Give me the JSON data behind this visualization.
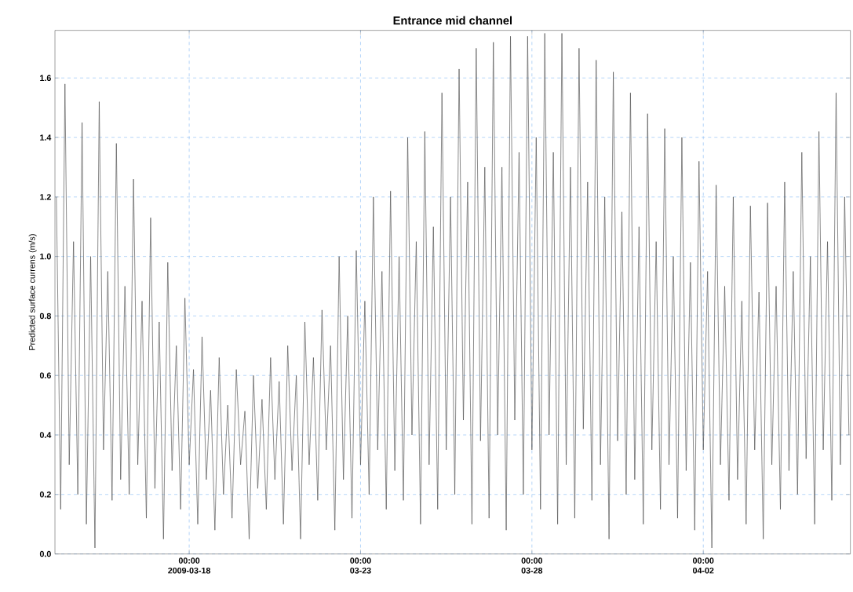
{
  "chart_data": {
    "type": "line",
    "title": "Entrance mid channel",
    "ylabel": "Predicted surface currens (m/s)",
    "color": "#505050",
    "grid": true,
    "marker": "none",
    "line_style": "solid",
    "xlim": [
      "2009-03-14T02:00",
      "2009-04-06T07:00"
    ],
    "ylim": [
      0,
      1.76
    ],
    "xticks": [
      {
        "value": "2009-03-18T00:00",
        "label": "00:00 2009-03-18"
      },
      {
        "value": "2009-03-23T00:00",
        "label": "00:00 03-23"
      },
      {
        "value": "2009-03-28T00:00",
        "label": "00:00 03-28"
      },
      {
        "value": "2009-04-02T00:00",
        "label": "00:00 04-02"
      }
    ],
    "yticks": [
      {
        "value": 0,
        "label": "0.0"
      },
      {
        "value": 0.2,
        "label": "0.2"
      },
      {
        "value": 0.4,
        "label": "0.4"
      },
      {
        "value": 0.6,
        "label": "0.6"
      },
      {
        "value": 0.8,
        "label": "0.8"
      },
      {
        "value": 1.0,
        "label": "1.0"
      },
      {
        "value": 1.2,
        "label": "1.2"
      },
      {
        "value": 1.4,
        "label": "1.4"
      },
      {
        "value": 1.6,
        "label": "1.6"
      }
    ],
    "x": [
      "2009-03-14T03:00",
      "2009-03-14T06:00",
      "2009-03-14T09:00",
      "2009-03-14T12:00",
      "2009-03-14T15:00",
      "2009-03-14T18:00",
      "2009-03-14T21:00",
      "2009-03-15T00:00",
      "2009-03-15T03:00",
      "2009-03-15T06:00",
      "2009-03-15T09:00",
      "2009-03-15T12:00",
      "2009-03-15T15:00",
      "2009-03-15T18:00",
      "2009-03-15T21:00",
      "2009-03-16T00:00",
      "2009-03-16T03:00",
      "2009-03-16T06:00",
      "2009-03-16T09:00",
      "2009-03-16T12:00",
      "2009-03-16T15:00",
      "2009-03-16T18:00",
      "2009-03-16T21:00",
      "2009-03-17T00:00",
      "2009-03-17T03:00",
      "2009-03-17T06:00",
      "2009-03-17T09:00",
      "2009-03-17T12:00",
      "2009-03-17T15:00",
      "2009-03-17T18:00",
      "2009-03-17T21:00",
      "2009-03-18T00:00",
      "2009-03-18T03:00",
      "2009-03-18T06:00",
      "2009-03-18T09:00",
      "2009-03-18T12:00",
      "2009-03-18T15:00",
      "2009-03-18T18:00",
      "2009-03-18T21:00",
      "2009-03-19T00:00",
      "2009-03-19T03:00",
      "2009-03-19T06:00",
      "2009-03-19T09:00",
      "2009-03-19T12:00",
      "2009-03-19T15:00",
      "2009-03-19T18:00",
      "2009-03-19T21:00",
      "2009-03-20T00:00",
      "2009-03-20T03:00",
      "2009-03-20T06:00",
      "2009-03-20T09:00",
      "2009-03-20T12:00",
      "2009-03-20T15:00",
      "2009-03-20T18:00",
      "2009-03-20T21:00",
      "2009-03-21T00:00",
      "2009-03-21T03:00",
      "2009-03-21T06:00",
      "2009-03-21T09:00",
      "2009-03-21T12:00",
      "2009-03-21T15:00",
      "2009-03-21T18:00",
      "2009-03-21T21:00",
      "2009-03-22T00:00",
      "2009-03-22T03:00",
      "2009-03-22T06:00",
      "2009-03-22T09:00",
      "2009-03-22T12:00",
      "2009-03-22T15:00",
      "2009-03-22T18:00",
      "2009-03-22T21:00",
      "2009-03-23T00:00",
      "2009-03-23T03:00",
      "2009-03-23T06:00",
      "2009-03-23T09:00",
      "2009-03-23T12:00",
      "2009-03-23T15:00",
      "2009-03-23T18:00",
      "2009-03-23T21:00",
      "2009-03-24T00:00",
      "2009-03-24T03:00",
      "2009-03-24T06:00",
      "2009-03-24T09:00",
      "2009-03-24T12:00",
      "2009-03-24T15:00",
      "2009-03-24T18:00",
      "2009-03-24T21:00",
      "2009-03-25T00:00",
      "2009-03-25T03:00",
      "2009-03-25T06:00",
      "2009-03-25T09:00",
      "2009-03-25T12:00",
      "2009-03-25T15:00",
      "2009-03-25T18:00",
      "2009-03-25T21:00",
      "2009-03-26T00:00",
      "2009-03-26T03:00",
      "2009-03-26T06:00",
      "2009-03-26T09:00",
      "2009-03-26T12:00",
      "2009-03-26T15:00",
      "2009-03-26T18:00",
      "2009-03-26T21:00",
      "2009-03-27T00:00",
      "2009-03-27T03:00",
      "2009-03-27T06:00",
      "2009-03-27T09:00",
      "2009-03-27T12:00",
      "2009-03-27T15:00",
      "2009-03-27T18:00",
      "2009-03-27T21:00",
      "2009-03-28T00:00",
      "2009-03-28T03:00",
      "2009-03-28T06:00",
      "2009-03-28T09:00",
      "2009-03-28T12:00",
      "2009-03-28T15:00",
      "2009-03-28T18:00",
      "2009-03-28T21:00",
      "2009-03-29T00:00",
      "2009-03-29T03:00",
      "2009-03-29T06:00",
      "2009-03-29T09:00",
      "2009-03-29T12:00",
      "2009-03-29T15:00",
      "2009-03-29T18:00",
      "2009-03-29T21:00",
      "2009-03-30T00:00",
      "2009-03-30T03:00",
      "2009-03-30T06:00",
      "2009-03-30T09:00",
      "2009-03-30T12:00",
      "2009-03-30T15:00",
      "2009-03-30T18:00",
      "2009-03-30T21:00",
      "2009-03-31T00:00",
      "2009-03-31T03:00",
      "2009-03-31T06:00",
      "2009-03-31T09:00",
      "2009-03-31T12:00",
      "2009-03-31T15:00",
      "2009-03-31T18:00",
      "2009-03-31T21:00",
      "2009-04-01T00:00",
      "2009-04-01T03:00",
      "2009-04-01T06:00",
      "2009-04-01T09:00",
      "2009-04-01T12:00",
      "2009-04-01T15:00",
      "2009-04-01T18:00",
      "2009-04-01T21:00",
      "2009-04-02T00:00",
      "2009-04-02T03:00",
      "2009-04-02T06:00",
      "2009-04-02T09:00",
      "2009-04-02T12:00",
      "2009-04-02T15:00",
      "2009-04-02T18:00",
      "2009-04-02T21:00",
      "2009-04-03T00:00",
      "2009-04-03T03:00",
      "2009-04-03T06:00",
      "2009-04-03T09:00",
      "2009-04-03T12:00",
      "2009-04-03T15:00",
      "2009-04-03T18:00",
      "2009-04-03T21:00",
      "2009-04-04T00:00",
      "2009-04-04T03:00",
      "2009-04-04T06:00",
      "2009-04-04T09:00",
      "2009-04-04T12:00",
      "2009-04-04T15:00",
      "2009-04-04T18:00",
      "2009-04-04T21:00",
      "2009-04-05T00:00",
      "2009-04-05T03:00",
      "2009-04-05T06:00",
      "2009-04-05T09:00",
      "2009-04-05T12:00",
      "2009-04-05T15:00",
      "2009-04-05T18:00",
      "2009-04-05T21:00",
      "2009-04-06T00:00",
      "2009-04-06T03:00",
      "2009-04-06T06:00"
    ],
    "values": [
      1.2,
      0.15,
      1.58,
      0.3,
      1.05,
      0.2,
      1.45,
      0.1,
      1.0,
      0.02,
      1.52,
      0.35,
      0.95,
      0.18,
      1.38,
      0.25,
      0.9,
      0.2,
      1.26,
      0.3,
      0.85,
      0.12,
      1.13,
      0.22,
      0.78,
      0.05,
      0.98,
      0.28,
      0.7,
      0.15,
      0.86,
      0.3,
      0.62,
      0.1,
      0.73,
      0.25,
      0.55,
      0.08,
      0.66,
      0.2,
      0.5,
      0.12,
      0.62,
      0.3,
      0.48,
      0.05,
      0.6,
      0.22,
      0.52,
      0.15,
      0.66,
      0.25,
      0.58,
      0.1,
      0.7,
      0.28,
      0.6,
      0.05,
      0.78,
      0.3,
      0.66,
      0.18,
      0.82,
      0.35,
      0.7,
      0.08,
      1.0,
      0.25,
      0.8,
      0.12,
      1.02,
      0.3,
      0.85,
      0.2,
      1.2,
      0.35,
      0.95,
      0.15,
      1.22,
      0.28,
      1.0,
      0.18,
      1.4,
      0.4,
      1.05,
      0.1,
      1.42,
      0.3,
      1.1,
      0.15,
      1.55,
      0.35,
      1.2,
      0.2,
      1.63,
      0.45,
      1.25,
      0.1,
      1.7,
      0.38,
      1.3,
      0.12,
      1.72,
      0.4,
      1.3,
      0.08,
      1.74,
      0.45,
      1.35,
      0.2,
      1.74,
      0.35,
      1.4,
      0.15,
      1.75,
      0.4,
      1.35,
      0.1,
      1.75,
      0.3,
      1.3,
      0.12,
      1.7,
      0.42,
      1.25,
      0.18,
      1.66,
      0.3,
      1.2,
      0.05,
      1.62,
      0.38,
      1.15,
      0.2,
      1.55,
      0.25,
      1.1,
      0.1,
      1.48,
      0.35,
      1.05,
      0.15,
      1.43,
      0.3,
      1.0,
      0.12,
      1.4,
      0.28,
      0.98,
      0.08,
      1.32,
      0.35,
      0.95,
      0.02,
      1.24,
      0.3,
      0.9,
      0.18,
      1.2,
      0.25,
      0.85,
      0.1,
      1.17,
      0.35,
      0.88,
      0.05,
      1.18,
      0.3,
      0.9,
      0.15,
      1.25,
      0.28,
      0.95,
      0.2,
      1.35,
      0.32,
      1.0,
      0.1,
      1.42,
      0.35,
      1.05,
      0.18,
      1.55,
      0.3,
      1.2,
      0.4
    ]
  }
}
